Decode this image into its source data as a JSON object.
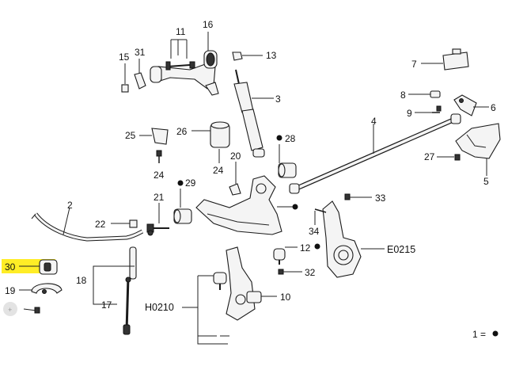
{
  "colors": {
    "highlight": "#ffea00",
    "line": "#222222",
    "part_fill": "#f4f4f4"
  },
  "labels": {
    "p2": "2",
    "p3": "3",
    "p4": "4",
    "p5": "5",
    "p6": "6",
    "p7": "7",
    "p8": "8",
    "p9": "9",
    "p10": "10",
    "p11": "11",
    "p12": "12",
    "p13": "13",
    "p15": "15",
    "p16": "16",
    "p17": "17",
    "p18": "18",
    "p19": "19",
    "p20": "20",
    "p21": "21",
    "p22": "22",
    "p24a": "24",
    "p24b": "24",
    "p25": "25",
    "p26": "26",
    "p27": "27",
    "p28": "28",
    "p29": "29",
    "p30": "30",
    "p31": "31",
    "p32": "32",
    "p33": "33",
    "p34": "34",
    "e0215": "E0215",
    "h0210": "H0210"
  },
  "legend": {
    "text": "1 ="
  },
  "selected_part": "30"
}
